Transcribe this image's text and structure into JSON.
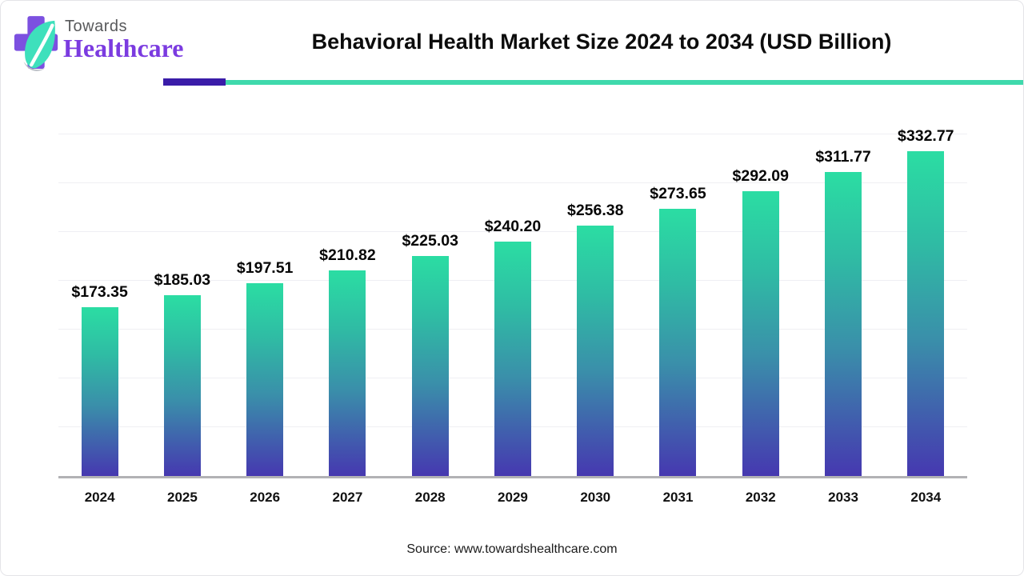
{
  "header": {
    "logo": {
      "brand_top": "Towards",
      "brand_bottom": "Healthcare"
    },
    "title": "Behavioral Health Market Size 2024 to 2034 (USD Billion)"
  },
  "chart_data": {
    "type": "bar",
    "title": "Behavioral Health Market Size 2024 to 2034 (USD Billion)",
    "categories": [
      "2024",
      "2025",
      "2026",
      "2027",
      "2028",
      "2029",
      "2030",
      "2031",
      "2032",
      "2033",
      "2034"
    ],
    "values": [
      173.35,
      185.03,
      197.51,
      210.82,
      225.03,
      240.2,
      256.38,
      273.65,
      292.09,
      311.77,
      332.77
    ],
    "value_labels": [
      "$173.35",
      "$185.03",
      "$197.51",
      "$210.82",
      "$225.03",
      "$240.20",
      "$256.38",
      "$273.65",
      "$292.09",
      "$311.77",
      "$332.77"
    ],
    "xlabel": "",
    "ylabel": "",
    "ylim": [
      0,
      350
    ],
    "grid": true,
    "gridline_values": [
      50,
      100,
      150,
      200,
      250,
      300,
      350
    ],
    "legend": "none",
    "bar_color_top": "#2bdda3",
    "bar_color_mid1": "#2fbca4",
    "bar_color_mid2": "#3a8faa",
    "bar_color_bottom": "#4638b0"
  },
  "footer": {
    "source": "Source: www.towardshealthcare.com"
  },
  "colors": {
    "accent_rule_purple": "#3a1ca8",
    "accent_rule_teal": "#3fd9ac",
    "logo_cross_purple": "#7c50e0",
    "logo_leaf_teal": "#3ee0bc",
    "brand_top_text": "#58595b",
    "brand_bottom_text": "#7b3be0",
    "axis_line": "#b2b2b5",
    "gridline": "#efeff3",
    "title_text": "#0c0c0c"
  }
}
